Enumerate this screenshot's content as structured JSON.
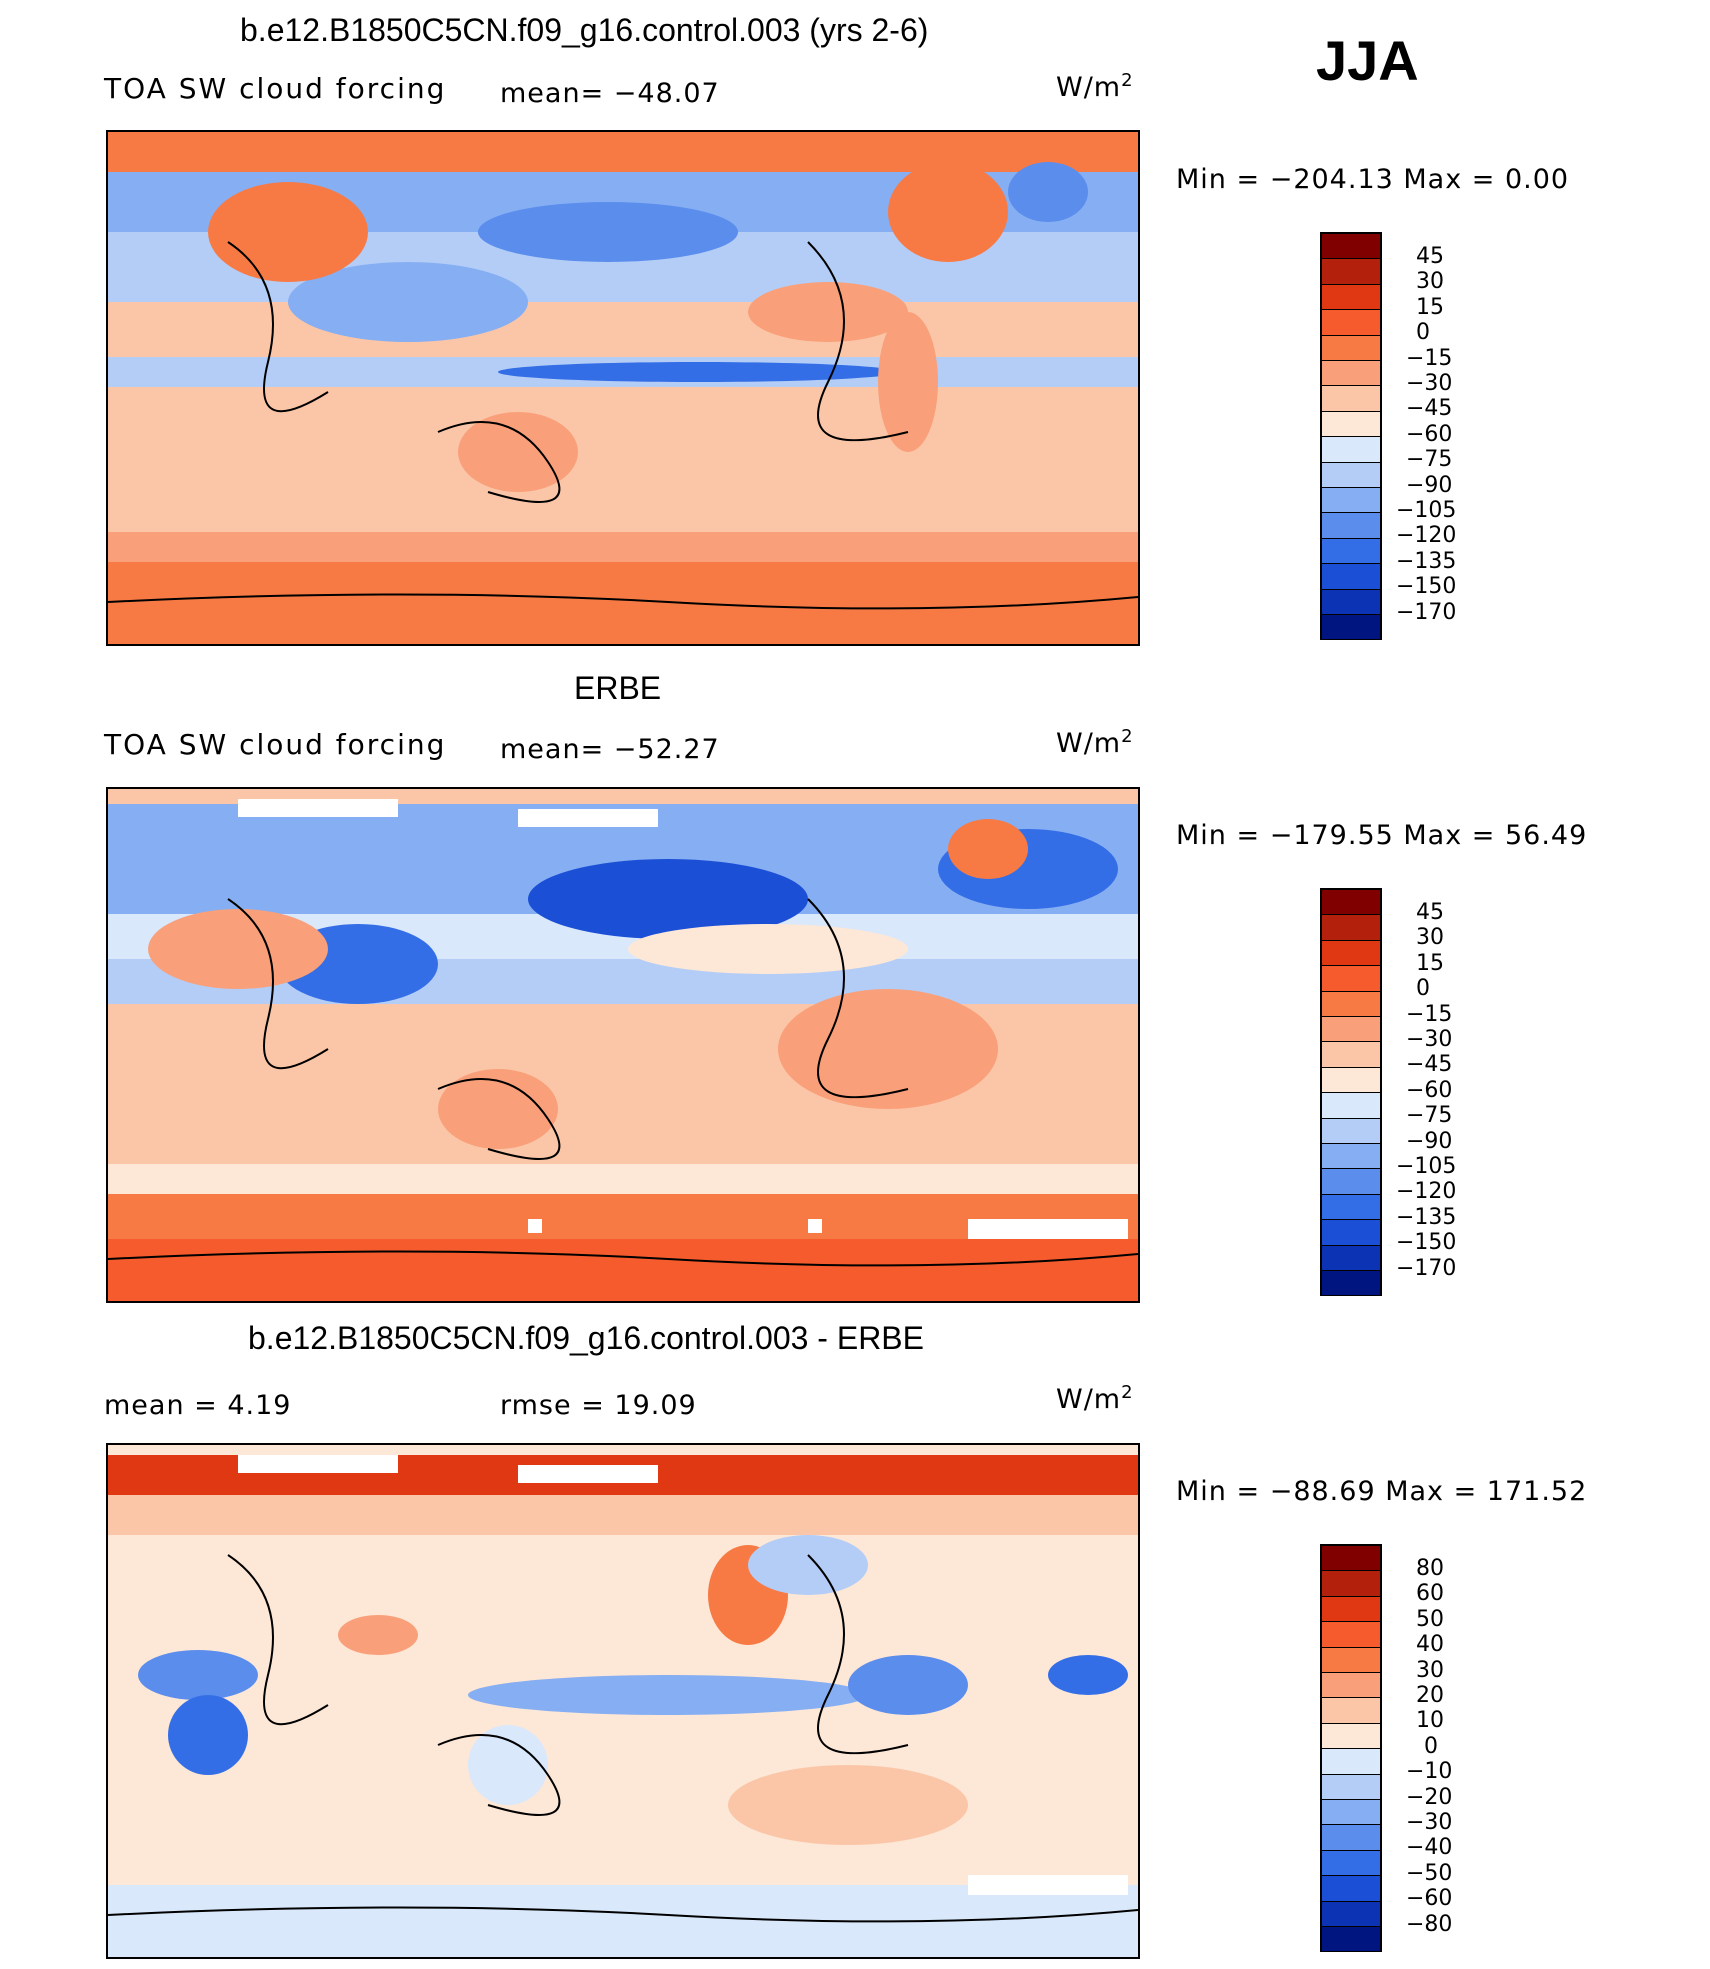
{
  "season": "JJA",
  "panels": [
    {
      "title": "b.e12.B1850C5CN.f09_g16.control.003 (yrs 2-6)",
      "variable": "TOA SW cloud forcing",
      "stat1": "mean=  −48.07",
      "stat2": "",
      "units": "W/m",
      "units_sup": "2",
      "minmax": "Min  =  −204.13  Max  =     0.00",
      "levels": [
        "45",
        "30",
        "15",
        "0",
        "−15",
        "−30",
        "−45",
        "−60",
        "−75",
        "−90",
        "−105",
        "−120",
        "−135",
        "−150",
        "−170"
      ],
      "palette": [
        "#800000",
        "#b3200c",
        "#e03812",
        "#f55b2c",
        "#f77a45",
        "#f9a07a",
        "#fbc6a8",
        "#fde7d6",
        "#d9e8fb",
        "#b3cdf7",
        "#86aef2",
        "#5b8ded",
        "#346ee6",
        "#1b4fd6",
        "#0b33b3",
        "#00157f"
      ]
    },
    {
      "title": "ERBE",
      "variable": "TOA SW cloud forcing",
      "stat1": "mean=  −52.27",
      "stat2": "",
      "units": "W/m",
      "units_sup": "2",
      "minmax": "Min  =  −179.55  Max  =    56.49",
      "levels": [
        "45",
        "30",
        "15",
        "0",
        "−15",
        "−30",
        "−45",
        "−60",
        "−75",
        "−90",
        "−105",
        "−120",
        "−135",
        "−150",
        "−170"
      ],
      "palette": [
        "#800000",
        "#b3200c",
        "#e03812",
        "#f55b2c",
        "#f77a45",
        "#f9a07a",
        "#fbc6a8",
        "#fde7d6",
        "#d9e8fb",
        "#b3cdf7",
        "#86aef2",
        "#5b8ded",
        "#346ee6",
        "#1b4fd6",
        "#0b33b3",
        "#00157f"
      ]
    },
    {
      "title": "b.e12.B1850C5CN.f09_g16.control.003 - ERBE",
      "variable": "",
      "stat1": "mean  =     4.19",
      "stat2": "rmse  =    19.09",
      "units": "W/m",
      "units_sup": "2",
      "minmax": "Min  =  −88.69  Max  =  171.52",
      "levels": [
        "80",
        "60",
        "50",
        "40",
        "30",
        "20",
        "10",
        "0",
        "−10",
        "−20",
        "−30",
        "−40",
        "−50",
        "−60",
        "−80"
      ],
      "palette": [
        "#800000",
        "#b3200c",
        "#e03812",
        "#f55b2c",
        "#f77a45",
        "#f9a07a",
        "#fbc6a8",
        "#fde7d6",
        "#d9e8fb",
        "#b3cdf7",
        "#86aef2",
        "#5b8ded",
        "#346ee6",
        "#1b4fd6",
        "#0b33b3",
        "#00157f"
      ]
    }
  ]
}
